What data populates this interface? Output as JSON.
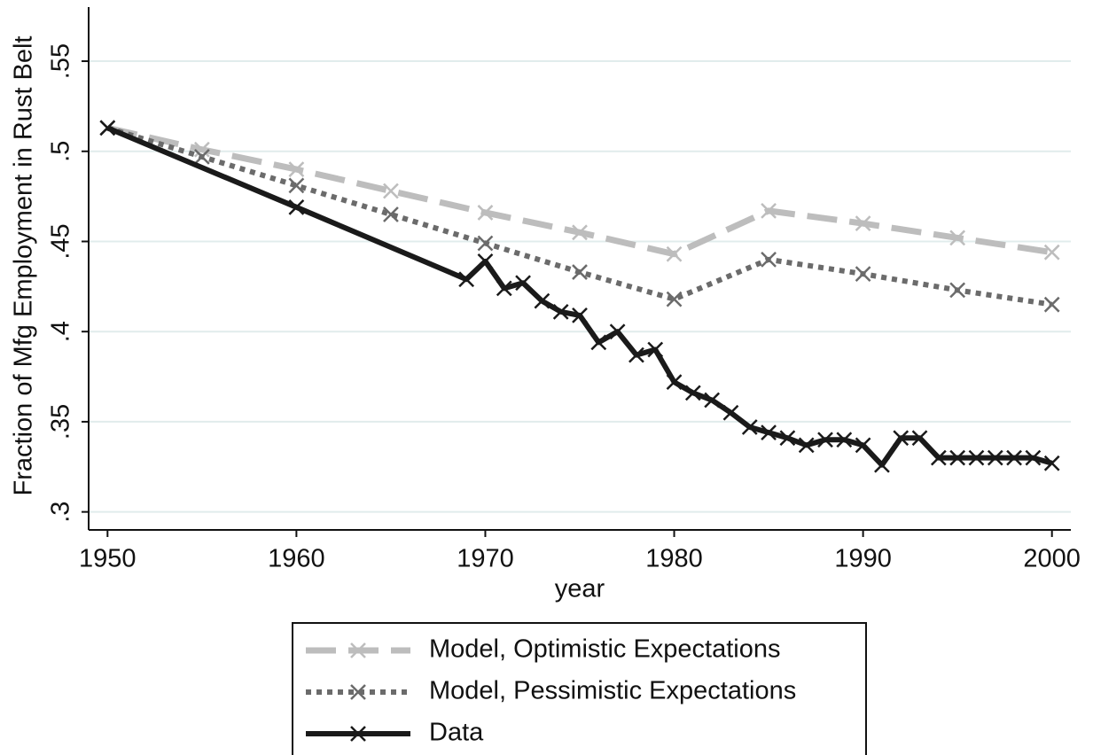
{
  "chart_data": {
    "type": "line",
    "x_label": "year",
    "y_label": "Fraction of Mfg Employment in Rust Belt",
    "xlim": [
      1949,
      2001
    ],
    "ylim": [
      0.29,
      0.58
    ],
    "xticks": [
      1950,
      1960,
      1970,
      1980,
      1990,
      2000
    ],
    "yticks": [
      {
        "value": 0.3,
        "label": ".3"
      },
      {
        "value": 0.35,
        "label": ".35"
      },
      {
        "value": 0.4,
        "label": ".4"
      },
      {
        "value": 0.45,
        "label": ".45"
      },
      {
        "value": 0.5,
        "label": ".5"
      },
      {
        "value": 0.55,
        "label": ".55"
      }
    ],
    "grid": true,
    "legend": "bottom",
    "series": [
      {
        "name": "Model, Optimistic Expectations",
        "color": "#bdbdbd",
        "dash": "dashed",
        "marker": "x",
        "x": [
          1950,
          1955,
          1960,
          1965,
          1970,
          1975,
          1980,
          1985,
          1990,
          1995,
          2000
        ],
        "values": [
          0.513,
          0.501,
          0.49,
          0.478,
          0.466,
          0.455,
          0.443,
          0.467,
          0.46,
          0.452,
          0.444
        ]
      },
      {
        "name": "Model, Pessimistic Expectations",
        "color": "#6b6b6b",
        "dash": "dotted",
        "marker": "x",
        "x": [
          1950,
          1955,
          1960,
          1965,
          1970,
          1975,
          1980,
          1985,
          1990,
          1995,
          2000
        ],
        "values": [
          0.513,
          0.497,
          0.481,
          0.465,
          0.449,
          0.433,
          0.418,
          0.44,
          0.432,
          0.423,
          0.415
        ]
      },
      {
        "name": "Data",
        "color": "#1a1a1a",
        "dash": "solid",
        "marker": "x",
        "x": [
          1950,
          1960,
          1969,
          1970,
          1971,
          1972,
          1973,
          1974,
          1975,
          1976,
          1977,
          1978,
          1979,
          1980,
          1981,
          1982,
          1983,
          1984,
          1985,
          1986,
          1987,
          1988,
          1989,
          1990,
          1991,
          1992,
          1993,
          1994,
          1995,
          1996,
          1997,
          1998,
          1999,
          2000
        ],
        "values": [
          0.513,
          0.469,
          0.429,
          0.439,
          0.424,
          0.427,
          0.417,
          0.411,
          0.409,
          0.394,
          0.4,
          0.387,
          0.39,
          0.372,
          0.366,
          0.362,
          0.355,
          0.347,
          0.344,
          0.341,
          0.337,
          0.34,
          0.34,
          0.337,
          0.326,
          0.341,
          0.341,
          0.33,
          0.33,
          0.33,
          0.33,
          0.33,
          0.33,
          0.327
        ]
      }
    ]
  }
}
